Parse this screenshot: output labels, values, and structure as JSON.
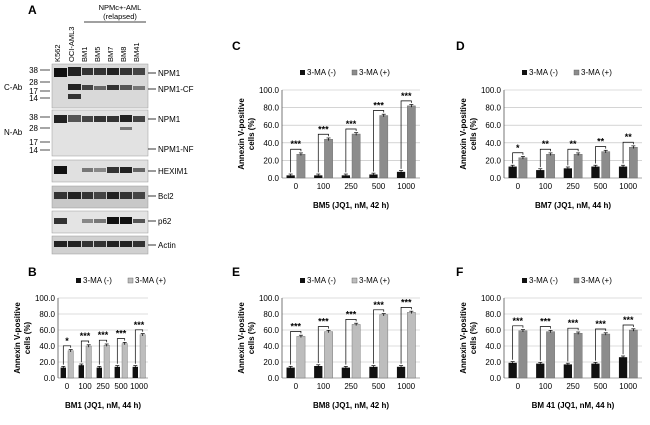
{
  "panel_a": {
    "letter": "A",
    "group_header": "NPMc+-AML",
    "group_subheader": "(relapsed)",
    "lanes": [
      "K562",
      "OCI-AML3",
      "BM1",
      "BM5",
      "BM7",
      "BM8",
      "BM41"
    ],
    "ab_labels": [
      "C-Ab",
      "N-Ab"
    ],
    "markers_c": [
      "38",
      "28",
      "17",
      "14"
    ],
    "markers_n": [
      "38",
      "28",
      "17",
      "14"
    ],
    "blots": [
      {
        "label": "NPM1",
        "group": "C-Ab"
      },
      {
        "label": "NPM1-CF",
        "group": "C-Ab"
      },
      {
        "label": "NPM1",
        "group": "N-Ab"
      },
      {
        "label": "NPM1-NF",
        "group": "N-Ab"
      },
      {
        "label": "HEXIM1",
        "group": ""
      },
      {
        "label": "Bcl2",
        "group": ""
      },
      {
        "label": "p62",
        "group": ""
      },
      {
        "label": "Actin",
        "group": ""
      }
    ]
  },
  "legend": {
    "neg": "3-MA (-)",
    "pos": "3-MA (+)"
  },
  "colors": {
    "neg": "#111111",
    "pos_light": "#bdbdbd",
    "pos_dark": "#8c8c8c",
    "axis": "#888888"
  },
  "chart_data": [
    {
      "id": "B",
      "type": "bar",
      "title": "",
      "xlabel": "BM1 (JQ1, nM, 44 h)",
      "ylabel": "Annexin V-positive cells (%)",
      "categories": [
        "0",
        "100",
        "250",
        "500",
        "1000"
      ],
      "ylim": [
        0,
        100
      ],
      "yticks": [
        "0.0",
        "20.0",
        "40.0",
        "60.0",
        "80.0",
        "100.0"
      ],
      "series": [
        {
          "name": "3-MA (-)",
          "values": [
            13,
            16,
            13,
            14,
            14
          ]
        },
        {
          "name": "3-MA (+)",
          "values": [
            34,
            40,
            41,
            43,
            54
          ]
        }
      ],
      "significance": [
        "*",
        "***",
        "***",
        "***",
        "***"
      ],
      "pos_shade": "light"
    },
    {
      "id": "C",
      "type": "bar",
      "title": "",
      "xlabel": "BM5 (JQ1, nM, 42 h)",
      "ylabel": "Annexin V-positive cells (%)",
      "categories": [
        "0",
        "100",
        "250",
        "500",
        "1000"
      ],
      "ylim": [
        0,
        100
      ],
      "yticks": [
        "0.0",
        "20.0",
        "40.0",
        "60.0",
        "80.0",
        "100.0"
      ],
      "series": [
        {
          "name": "3-MA (-)",
          "values": [
            3,
            3,
            3,
            4,
            7
          ]
        },
        {
          "name": "3-MA (+)",
          "values": [
            27,
            44,
            50,
            71,
            82
          ]
        }
      ],
      "significance": [
        "***",
        "***",
        "***",
        "***",
        "***"
      ],
      "pos_shade": "dark"
    },
    {
      "id": "D",
      "type": "bar",
      "title": "",
      "xlabel": "BM7 (JQ1, nM, 44 h)",
      "ylabel": "Annexin V-positive cells (%)",
      "categories": [
        "0",
        "100",
        "250",
        "500",
        "1000"
      ],
      "ylim": [
        0,
        100
      ],
      "yticks": [
        "0.0",
        "20.0",
        "40.0",
        "60.0",
        "80.0",
        "100.0"
      ],
      "series": [
        {
          "name": "3-MA (-)",
          "values": [
            13,
            9,
            11,
            13,
            13
          ]
        },
        {
          "name": "3-MA (+)",
          "values": [
            23,
            27,
            27,
            30,
            35
          ]
        }
      ],
      "significance": [
        "*",
        "**",
        "**",
        "**",
        "**"
      ],
      "pos_shade": "dark"
    },
    {
      "id": "E",
      "type": "bar",
      "title": "",
      "xlabel": "BM8 (JQ1, nM, 42 h)",
      "ylabel": "Annexin V-positive cells (%)",
      "categories": [
        "0",
        "100",
        "250",
        "500",
        "1000"
      ],
      "ylim": [
        0,
        100
      ],
      "yticks": [
        "0.0",
        "20.0",
        "40.0",
        "60.0",
        "80.0",
        "100.0"
      ],
      "series": [
        {
          "name": "3-MA (-)",
          "values": [
            13,
            15,
            13,
            14,
            14
          ]
        },
        {
          "name": "3-MA (+)",
          "values": [
            52,
            58,
            67,
            79,
            82
          ]
        }
      ],
      "significance": [
        "***",
        "***",
        "***",
        "***",
        "***"
      ],
      "pos_shade": "light"
    },
    {
      "id": "F",
      "type": "bar",
      "title": "",
      "xlabel": "BM 41 (JQ1, nM, 44 h)",
      "ylabel": "Annexin V-positive cells (%)",
      "categories": [
        "0",
        "100",
        "250",
        "500",
        "1000"
      ],
      "ylim": [
        0,
        100
      ],
      "yticks": [
        "0.0",
        "20.0",
        "40.0",
        "60.0",
        "80.0",
        "100.0"
      ],
      "series": [
        {
          "name": "3-MA (-)",
          "values": [
            19,
            18,
            17,
            18,
            26
          ]
        },
        {
          "name": "3-MA (+)",
          "values": [
            59,
            58,
            56,
            55,
            60
          ]
        }
      ],
      "significance": [
        "***",
        "***",
        "***",
        "***",
        "***"
      ],
      "pos_shade": "dark"
    }
  ]
}
